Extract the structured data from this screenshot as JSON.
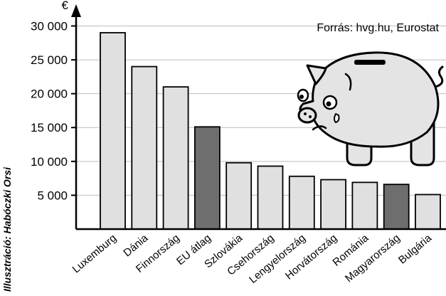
{
  "chart_data": {
    "type": "bar",
    "unit_label": "€",
    "source": "Forrás: hvg.hu, Eurostat",
    "credit": "Illusztráció: Habóczki Orsi",
    "ylim": [
      0,
      32000
    ],
    "yticks": [
      5000,
      10000,
      15000,
      20000,
      25000,
      30000
    ],
    "ytick_labels": [
      "5 000",
      "10 000",
      "15 000",
      "20 000",
      "25 000",
      "30 000"
    ],
    "grid": true,
    "categories": [
      "Luxemburg",
      "Dánia",
      "Finnország",
      "EU átlag",
      "Szlovákia",
      "Csehország",
      "Lengyelország",
      "Horvátország",
      "Románia",
      "Magyarország",
      "Bulgária"
    ],
    "values": [
      29000,
      24000,
      21000,
      15100,
      9800,
      9300,
      7800,
      7300,
      6900,
      6600,
      5100
    ],
    "highlight": [
      "EU átlag",
      "Magyarország"
    ],
    "colors": {
      "bar": "#e0e0e0",
      "highlight": "#6e6e6e",
      "outline": "#000000",
      "grid": "#bdbdbd",
      "piggy": "#e4e4e4"
    },
    "illustration": "piggy-bank"
  }
}
